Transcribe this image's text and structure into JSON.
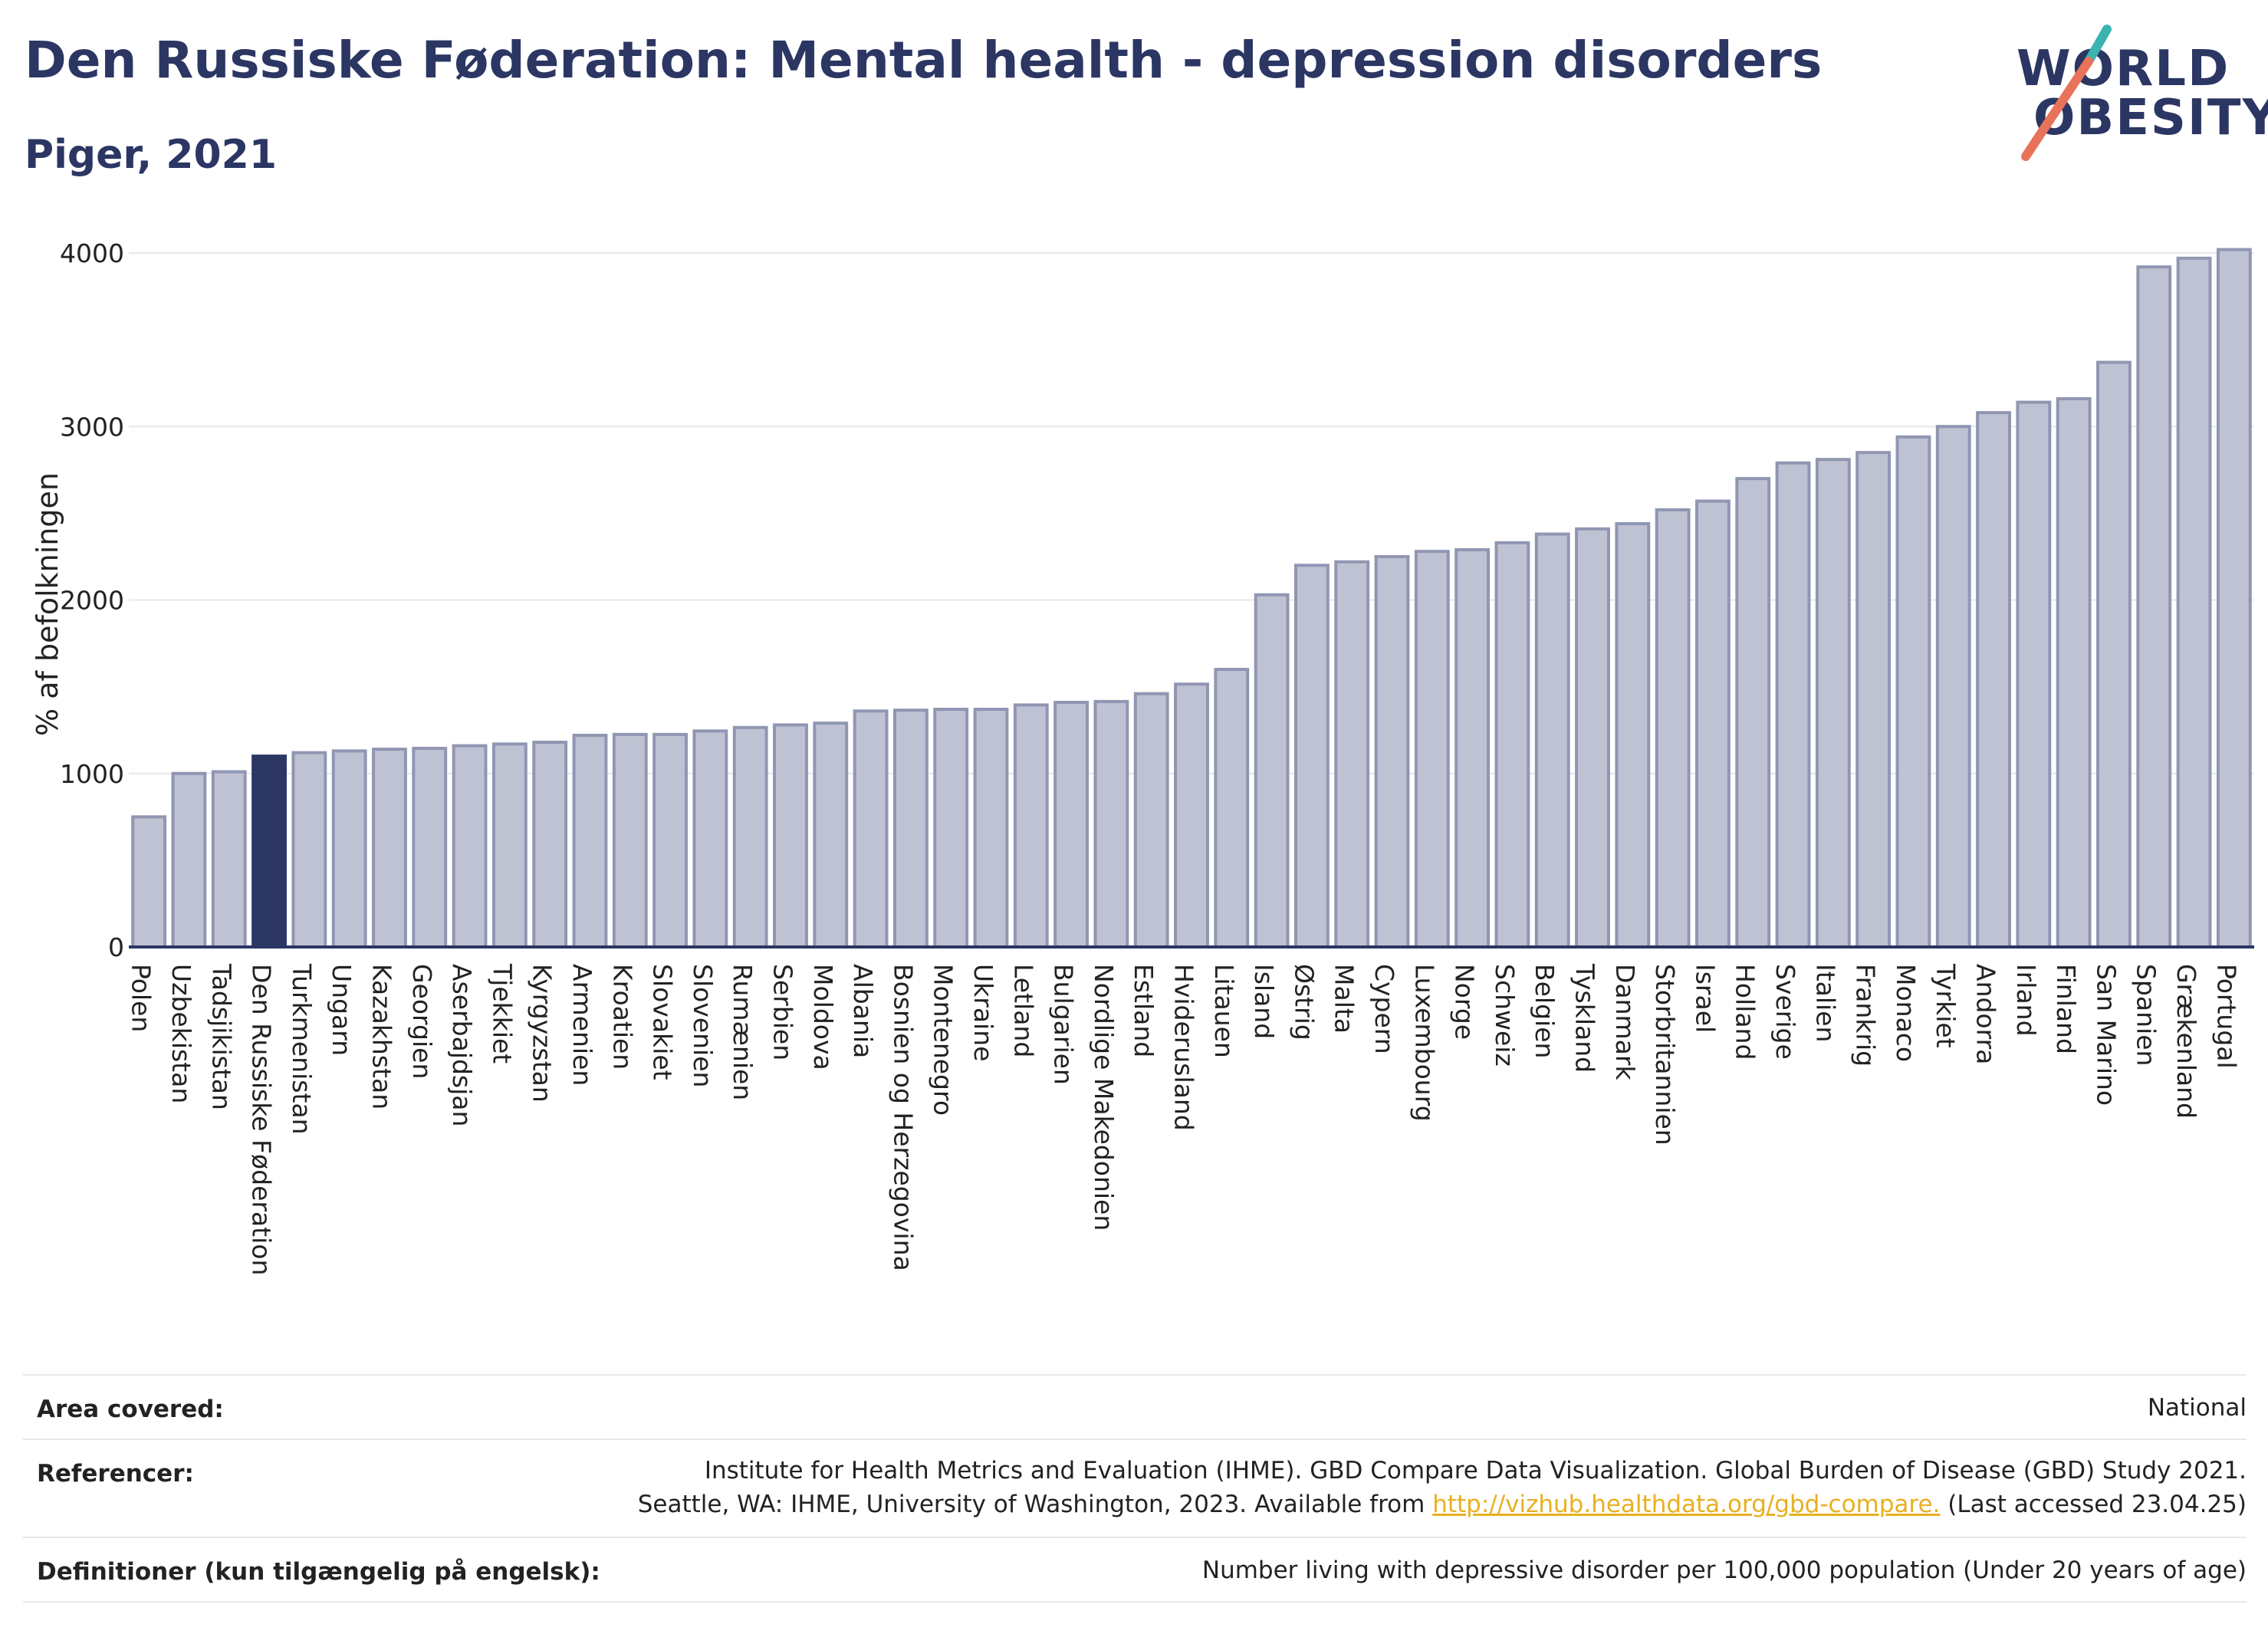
{
  "title": "Den Russiske Føderation: Mental health - depression disorders",
  "subtitle": "Piger, 2021",
  "logo": {
    "line1": "WORLD",
    "line2": "OBESITY"
  },
  "colors": {
    "bar": "#bfc2d2",
    "bar_stroke": "#9096b2",
    "highlight": "#2b3663",
    "title": "#2b3663",
    "grid": "#e5e7ee",
    "link": "#e8b020"
  },
  "chart_data": {
    "type": "bar",
    "ylabel": "% af befolkningen",
    "ylim": [
      0,
      4000
    ],
    "yticks": [
      0,
      1000,
      2000,
      3000,
      4000
    ],
    "grid": true,
    "highlight": "Den Russiske Føderation",
    "categories": [
      "Polen",
      "Uzbekistan",
      "Tadsjikistan",
      "Den Russiske Føderation",
      "Turkmenistan",
      "Ungarn",
      "Kazakhstan",
      "Georgien",
      "Aserbajdsjan",
      "Tjekkiet",
      "Kyrgyzstan",
      "Armenien",
      "Kroatien",
      "Slovakiet",
      "Slovenien",
      "Rumænien",
      "Serbien",
      "Moldova",
      "Albania",
      "Bosnien og Herzegovina",
      "Montenegro",
      "Ukraine",
      "Letland",
      "Bulgarien",
      "Nordlige Makedonien",
      "Estland",
      "Hviderusland",
      "Litauen",
      "Island",
      "Østrig",
      "Malta",
      "Cypern",
      "Luxembourg",
      "Norge",
      "Schweiz",
      "Belgien",
      "Tyskland",
      "Danmark",
      "Storbritannien",
      "Israel",
      "Holland",
      "Sverige",
      "Italien",
      "Frankrig",
      "Monaco",
      "Tyrkiet",
      "Andorra",
      "Irland",
      "Finland",
      "San Marino",
      "Spanien",
      "Grækenland",
      "Portugal"
    ],
    "values": [
      750,
      1000,
      1010,
      1100,
      1120,
      1130,
      1140,
      1145,
      1160,
      1170,
      1180,
      1220,
      1225,
      1225,
      1245,
      1265,
      1280,
      1290,
      1360,
      1365,
      1370,
      1370,
      1395,
      1410,
      1415,
      1460,
      1515,
      1600,
      2030,
      2200,
      2220,
      2250,
      2280,
      2290,
      2330,
      2380,
      2410,
      2440,
      2520,
      2570,
      2700,
      2790,
      2810,
      2850,
      2940,
      3000,
      3080,
      3140,
      3160,
      3370,
      3920,
      3970,
      4020
    ]
  },
  "footer": {
    "area_label": "Area covered:",
    "area_value": "National",
    "ref_label": "Referencer:",
    "ref_line1": "Institute for Health Metrics and Evaluation (IHME). GBD Compare Data Visualization. Global Burden of Disease (GBD) Study 2021.",
    "ref_line2_pre": "Seattle, WA: IHME, University of Washington, 2023. Available from ",
    "ref_link": "http://vizhub.healthdata.org/gbd-compare.",
    "ref_line2_post": " (Last accessed 23.04.25)",
    "def_label": "Definitioner (kun tilgængelig på engelsk):",
    "def_value": "Number living with depressive disorder per 100,000 population (Under 20 years of age)"
  }
}
